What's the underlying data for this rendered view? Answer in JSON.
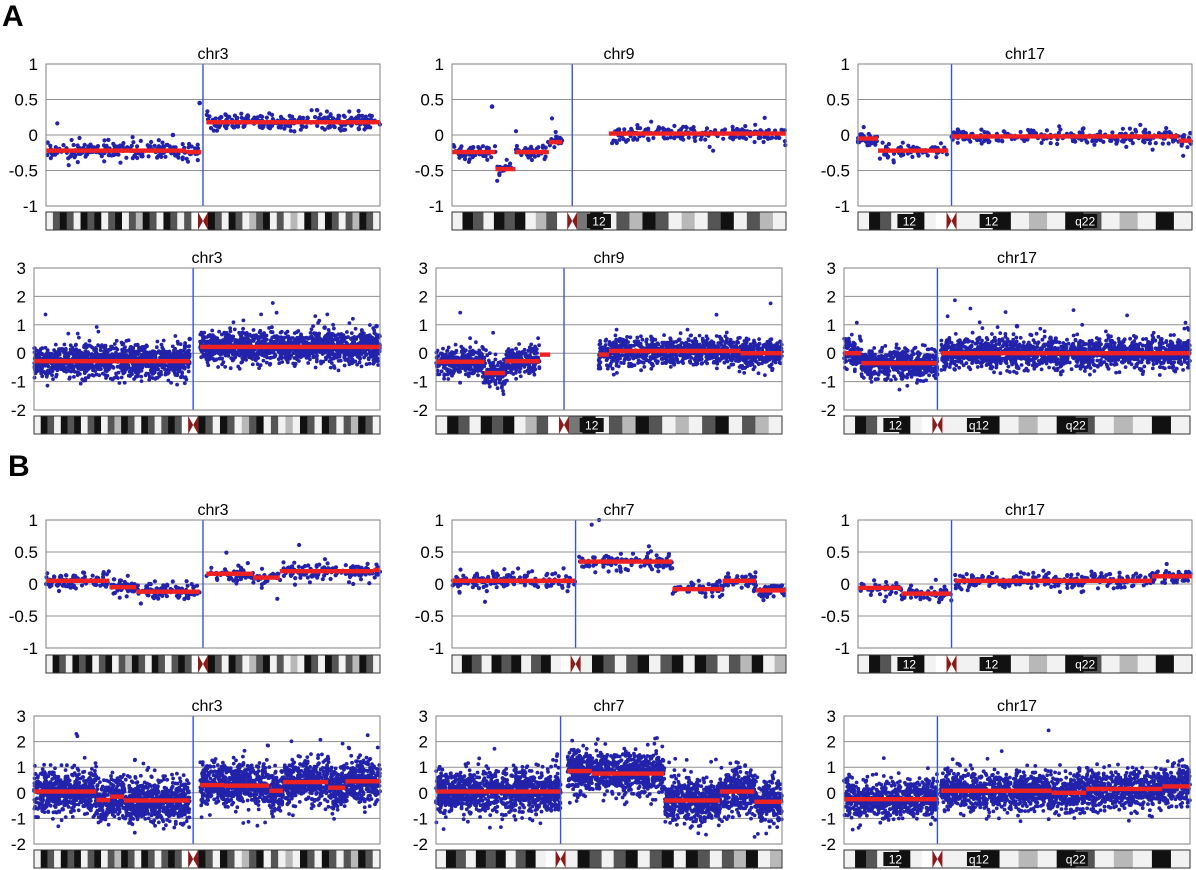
{
  "figure": {
    "sections": [
      "A",
      "B"
    ],
    "colors": {
      "point": "#2222aa",
      "segment": "#ee2222",
      "centromere_line": "#3355dd",
      "plot_border": "#808080",
      "gridline": "#909090"
    }
  },
  "chart_data": [
    {
      "type": "scatter",
      "title": "chr3",
      "ylim": [
        -1,
        1
      ],
      "yticks": [
        "1",
        "0.5",
        "0",
        "-0.5",
        "-1"
      ],
      "centromere": 0.47,
      "n_points": 460,
      "noise": 0.065,
      "grid": true,
      "segments": [
        {
          "x": [
            0,
            0.42
          ],
          "y": -0.22
        },
        {
          "x": [
            0.42,
            0.465
          ],
          "y": -0.24
        },
        {
          "x": [
            0.48,
            1.0
          ],
          "y": 0.18
        }
      ],
      "outliers": [
        {
          "x": 0.38,
          "y": 0.0
        },
        {
          "x": 0.46,
          "y": 0.45
        }
      ],
      "ideogram": {
        "bands": [
          "wbkbwkbkwbkwbgkbwkbwbc",
          "kbwkbwgbkwbwgwkbwkbwbgkbw"
        ],
        "labels": []
      }
    },
    {
      "type": "scatter",
      "title": "chr9",
      "ylim": [
        -1,
        1
      ],
      "yticks": [
        "1",
        "0.5",
        "0",
        "-0.5",
        "-1"
      ],
      "centromere": 0.36,
      "n_points": 380,
      "noise": 0.06,
      "grid": true,
      "gap": [
        0.33,
        0.47
      ],
      "segments": [
        {
          "x": [
            0,
            0.13
          ],
          "y": -0.24
        },
        {
          "x": [
            0.13,
            0.19
          ],
          "y": -0.48
        },
        {
          "x": [
            0.19,
            0.29
          ],
          "y": -0.24
        },
        {
          "x": [
            0.29,
            0.33
          ],
          "y": -0.1
        },
        {
          "x": [
            0.47,
            1.0
          ],
          "y": 0.02
        }
      ],
      "outliers": [
        {
          "x": 0.12,
          "y": 0.4
        }
      ],
      "ideogram": {
        "bands": [
          "wkbwkbkwgbc",
          "hkwbgkbwgwbkwbgw"
        ],
        "labels": [
          "12"
        ]
      }
    },
    {
      "type": "scatter",
      "title": "chr17",
      "ylim": [
        -1,
        1
      ],
      "yticks": [
        "1",
        "0.5",
        "0",
        "-0.5",
        "-1"
      ],
      "centromere": 0.28,
      "n_points": 360,
      "noise": 0.055,
      "grid": true,
      "segments": [
        {
          "x": [
            0,
            0.06
          ],
          "y": -0.05
        },
        {
          "x": [
            0.06,
            0.27
          ],
          "y": -0.22
        },
        {
          "x": [
            0.28,
            0.96
          ],
          "y": -0.02
        },
        {
          "x": [
            0.96,
            1.0
          ],
          "y": -0.08
        }
      ],
      "outliers": [],
      "ideogram": {
        "bands": [
          "wkbwwkwc",
          "wwkwgwkbwgwkw"
        ],
        "labels": [
          "12",
          "12",
          "q22"
        ]
      }
    },
    {
      "type": "scatter",
      "title": "chr3",
      "ylim": [
        -2,
        3
      ],
      "yticks": [
        "3",
        "2",
        "1",
        "0",
        "-1",
        "-2"
      ],
      "centromere": 0.46,
      "n_points": 2600,
      "noise": 0.28,
      "grid": true,
      "segments": [
        {
          "x": [
            0,
            0.45
          ],
          "y": -0.28
        },
        {
          "x": [
            0.48,
            1.0
          ],
          "y": 0.22
        }
      ],
      "outliers": [
        {
          "x": 0.45,
          "y": 0.5
        },
        {
          "x": 0.84,
          "y": 0.9
        },
        {
          "x": 0.99,
          "y": 0.95
        }
      ],
      "ideogram": {
        "bands": [
          "wkbwkbkwbkwbgkbwkbwbkbc",
          "kbwkbwgbkwbwgwkbwkbwbgkbw"
        ],
        "labels": []
      }
    },
    {
      "type": "scatter",
      "title": "chr9",
      "ylim": [
        -2,
        3
      ],
      "yticks": [
        "3",
        "2",
        "1",
        "0",
        "-1",
        "-2"
      ],
      "centromere": 0.37,
      "n_points": 2000,
      "noise": 0.26,
      "grid": true,
      "gap": [
        0.3,
        0.47
      ],
      "segments": [
        {
          "x": [
            0,
            0.14
          ],
          "y": -0.3
        },
        {
          "x": [
            0.14,
            0.2
          ],
          "y": -0.7
        },
        {
          "x": [
            0.2,
            0.3
          ],
          "y": -0.28
        },
        {
          "x": [
            0.3,
            0.33
          ],
          "y": -0.05
        },
        {
          "x": [
            0.47,
            0.5
          ],
          "y": -0.05
        },
        {
          "x": [
            0.5,
            0.88
          ],
          "y": 0.08
        },
        {
          "x": [
            0.88,
            1.0
          ],
          "y": 0.0
        }
      ],
      "outliers": [],
      "ideogram": {
        "bands": [
          "wkbwkbkwgbc",
          "hkwbgkbwgwbkwbgw"
        ],
        "labels": [
          "12"
        ]
      }
    },
    {
      "type": "scatter",
      "title": "chr17",
      "ylim": [
        -2,
        3
      ],
      "yticks": [
        "3",
        "2",
        "1",
        "0",
        "-1",
        "-2"
      ],
      "centromere": 0.27,
      "n_points": 2200,
      "noise": 0.26,
      "grid": true,
      "segments": [
        {
          "x": [
            0,
            0.05
          ],
          "y": 0.0
        },
        {
          "x": [
            0.05,
            0.27
          ],
          "y": -0.35
        },
        {
          "x": [
            0.28,
            1.0
          ],
          "y": 0.0
        }
      ],
      "outliers": [
        {
          "x": 0.5,
          "y": 0.95
        },
        {
          "x": 0.5,
          "y": -0.5
        }
      ],
      "ideogram": {
        "bands": [
          "wkbwwkwc",
          "wwkwgwkbwgwkw"
        ],
        "labels": [
          "12",
          "q12",
          "q22"
        ]
      }
    },
    {
      "type": "scatter",
      "title": "chr3",
      "ylim": [
        -1,
        1
      ],
      "yticks": [
        "1",
        "0.5",
        "0",
        "-0.5",
        "-1"
      ],
      "centromere": 0.47,
      "n_points": 460,
      "noise": 0.065,
      "grid": true,
      "segments": [
        {
          "x": [
            0,
            0.19
          ],
          "y": 0.05
        },
        {
          "x": [
            0.19,
            0.27
          ],
          "y": -0.05
        },
        {
          "x": [
            0.27,
            0.46
          ],
          "y": -0.12
        },
        {
          "x": [
            0.48,
            0.62
          ],
          "y": 0.16
        },
        {
          "x": [
            0.62,
            0.7
          ],
          "y": 0.1
        },
        {
          "x": [
            0.7,
            0.98
          ],
          "y": 0.2
        },
        {
          "x": [
            0.98,
            1.0
          ],
          "y": 0.22
        }
      ],
      "outliers": [],
      "ideogram": {
        "bands": [
          "wkbwkbkwbkwbgkbwkbwbkbc",
          "kbwkbwgbkwbwgwkbwkbwbgkbw"
        ],
        "labels": []
      }
    },
    {
      "type": "scatter",
      "title": "chr7",
      "ylim": [
        -1,
        1
      ],
      "yticks": [
        "1",
        "0.5",
        "0",
        "-0.5",
        "-1"
      ],
      "centromere": 0.37,
      "n_points": 460,
      "noise": 0.065,
      "grid": true,
      "segments": [
        {
          "x": [
            0,
            0.37
          ],
          "y": 0.05
        },
        {
          "x": [
            0.38,
            0.66
          ],
          "y": 0.35
        },
        {
          "x": [
            0.66,
            0.81
          ],
          "y": -0.08
        },
        {
          "x": [
            0.81,
            0.91
          ],
          "y": 0.05
        },
        {
          "x": [
            0.91,
            1.0
          ],
          "y": -0.1
        }
      ],
      "outliers": [],
      "ideogram": {
        "bands": [
          "wkbwkbkwbkwc",
          "wkbwbkwbkwkbwbgkwg"
        ],
        "labels": []
      }
    },
    {
      "type": "scatter",
      "title": "chr17",
      "ylim": [
        -1,
        1
      ],
      "yticks": [
        "1",
        "0.5",
        "0",
        "-0.5",
        "-1"
      ],
      "centromere": 0.28,
      "n_points": 380,
      "noise": 0.06,
      "grid": true,
      "segments": [
        {
          "x": [
            0,
            0.13
          ],
          "y": -0.06
        },
        {
          "x": [
            0.13,
            0.28
          ],
          "y": -0.15
        },
        {
          "x": [
            0.29,
            0.88
          ],
          "y": 0.05
        },
        {
          "x": [
            0.88,
            1.0
          ],
          "y": 0.12
        }
      ],
      "outliers": [],
      "ideogram": {
        "bands": [
          "wkbwwkwc",
          "wwkwgwkbwgwkw"
        ],
        "labels": [
          "12",
          "12",
          "q22"
        ]
      }
    },
    {
      "type": "scatter",
      "title": "chr3",
      "ylim": [
        -2,
        3
      ],
      "yticks": [
        "3",
        "2",
        "1",
        "0",
        "-1",
        "-2"
      ],
      "centromere": 0.46,
      "n_points": 3000,
      "noise": 0.42,
      "grid": true,
      "segments": [
        {
          "x": [
            0,
            0.18
          ],
          "y": 0.05
        },
        {
          "x": [
            0.18,
            0.22
          ],
          "y": -0.28
        },
        {
          "x": [
            0.22,
            0.26
          ],
          "y": -0.15
        },
        {
          "x": [
            0.26,
            0.45
          ],
          "y": -0.3
        },
        {
          "x": [
            0.48,
            0.55
          ],
          "y": 0.3
        },
        {
          "x": [
            0.55,
            0.68
          ],
          "y": 0.28
        },
        {
          "x": [
            0.68,
            0.72
          ],
          "y": 0.08
        },
        {
          "x": [
            0.72,
            0.85
          ],
          "y": 0.42
        },
        {
          "x": [
            0.85,
            0.9
          ],
          "y": 0.2
        },
        {
          "x": [
            0.9,
            1.0
          ],
          "y": 0.45
        }
      ],
      "outliers": [],
      "ideogram": {
        "bands": [
          "wkbwkbkwbkwbgkbwkbwbkbc",
          "kbwkbwgbkwbwgwkbwkbwbgkbw"
        ],
        "labels": []
      }
    },
    {
      "type": "scatter",
      "title": "chr7",
      "ylim": [
        -2,
        3
      ],
      "yticks": [
        "3",
        "2",
        "1",
        "0",
        "-1",
        "-2"
      ],
      "centromere": 0.36,
      "n_points": 3000,
      "noise": 0.42,
      "grid": true,
      "segments": [
        {
          "x": [
            0,
            0.36
          ],
          "y": 0.05
        },
        {
          "x": [
            0.38,
            0.45
          ],
          "y": 0.85
        },
        {
          "x": [
            0.45,
            0.66
          ],
          "y": 0.75
        },
        {
          "x": [
            0.66,
            0.82
          ],
          "y": -0.3
        },
        {
          "x": [
            0.82,
            0.92
          ],
          "y": 0.05
        },
        {
          "x": [
            0.92,
            1.0
          ],
          "y": -0.35
        }
      ],
      "outliers": [],
      "ideogram": {
        "bands": [
          "wkbwkbkwbkwc",
          "wkbwbkwbkwkbwbgkwg"
        ],
        "labels": []
      }
    },
    {
      "type": "scatter",
      "title": "chr17",
      "ylim": [
        -2,
        3
      ],
      "yticks": [
        "3",
        "2",
        "1",
        "0",
        "-1",
        "-2"
      ],
      "centromere": 0.27,
      "n_points": 2600,
      "noise": 0.38,
      "grid": true,
      "segments": [
        {
          "x": [
            0,
            0.27
          ],
          "y": -0.25
        },
        {
          "x": [
            0.28,
            0.6
          ],
          "y": 0.08
        },
        {
          "x": [
            0.6,
            0.7
          ],
          "y": 0.0
        },
        {
          "x": [
            0.7,
            0.92
          ],
          "y": 0.15
        },
        {
          "x": [
            0.92,
            1.0
          ],
          "y": 0.25
        }
      ],
      "outliers": [
        {
          "x": 0.68,
          "y": 0.95
        },
        {
          "x": 0.99,
          "y": 1.0
        }
      ],
      "ideogram": {
        "bands": [
          "wkbwwkwc",
          "wwkwgwkbwgwkw"
        ],
        "labels": [
          "12",
          "q12",
          "q22"
        ]
      }
    }
  ]
}
